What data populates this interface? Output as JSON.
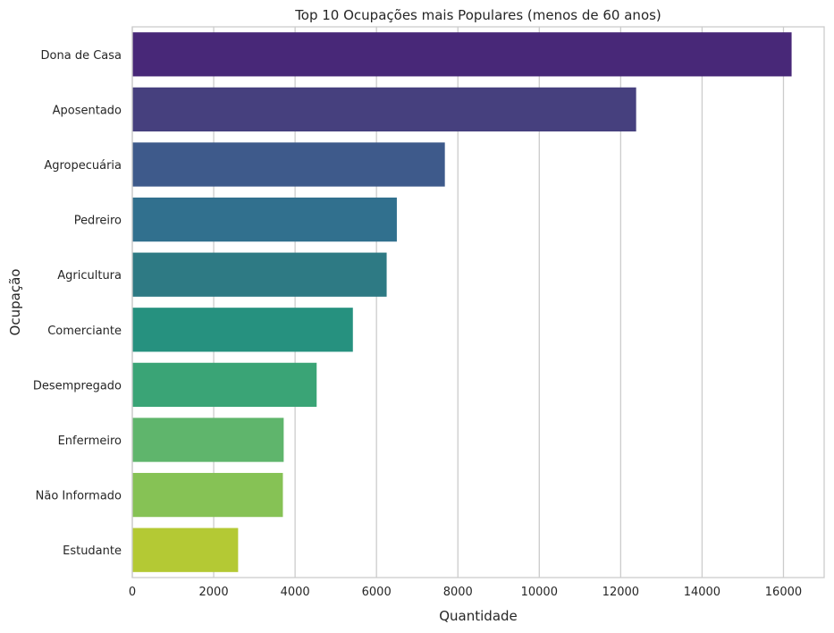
{
  "chart_data": {
    "type": "bar",
    "orientation": "horizontal",
    "title": "Top 10 Ocupações mais Populares (menos de 60 anos)",
    "xlabel": "Quantidade",
    "ylabel": "Ocupação",
    "xlim": [
      0,
      17000
    ],
    "xticks": [
      0,
      2000,
      4000,
      6000,
      8000,
      10000,
      12000,
      14000,
      16000
    ],
    "grid": "vertical",
    "categories": [
      "Dona de Casa",
      "Aposentado",
      "Agropecuária",
      "Pedreiro",
      "Agricultura",
      "Comerciante",
      "Desempregado",
      "Enfermeiro",
      "Não Informado",
      "Estudante"
    ],
    "values": [
      16200,
      12380,
      7680,
      6500,
      6250,
      5420,
      4530,
      3720,
      3700,
      2600
    ],
    "colors": [
      "#482878",
      "#46407e",
      "#3e5a8b",
      "#31708e",
      "#2e7a84",
      "#26917f",
      "#3aa476",
      "#5fb56c",
      "#86c255",
      "#b4c934"
    ]
  }
}
